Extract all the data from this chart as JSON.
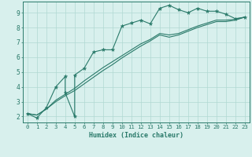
{
  "line1_x": [
    0,
    1,
    2,
    3,
    4,
    4,
    5,
    5,
    6,
    7,
    8,
    9,
    10,
    11,
    12,
    13,
    14,
    15,
    16,
    17,
    18,
    19,
    20,
    21,
    22,
    23
  ],
  "line1_y": [
    2.2,
    1.9,
    2.6,
    4.0,
    4.7,
    3.6,
    2.0,
    4.8,
    5.25,
    6.35,
    6.5,
    6.5,
    8.1,
    8.3,
    8.5,
    8.25,
    9.3,
    9.5,
    9.2,
    9.0,
    9.3,
    9.1,
    9.1,
    8.9,
    8.6,
    8.7
  ],
  "line2_x": [
    0,
    1,
    2,
    3,
    4,
    5,
    6,
    7,
    8,
    9,
    10,
    11,
    12,
    13,
    14,
    15,
    16,
    17,
    18,
    19,
    20,
    21,
    22,
    23
  ],
  "line2_y": [
    2.2,
    2.1,
    2.5,
    3.1,
    3.5,
    3.9,
    4.4,
    4.85,
    5.3,
    5.7,
    6.1,
    6.5,
    6.9,
    7.2,
    7.6,
    7.5,
    7.6,
    7.85,
    8.1,
    8.3,
    8.5,
    8.5,
    8.55,
    8.7
  ],
  "line3_x": [
    0,
    1,
    2,
    3,
    4,
    5,
    6,
    7,
    8,
    9,
    10,
    11,
    12,
    13,
    14,
    15,
    16,
    17,
    18,
    19,
    20,
    21,
    22,
    23
  ],
  "line3_y": [
    2.2,
    2.1,
    2.5,
    3.0,
    3.4,
    3.75,
    4.2,
    4.65,
    5.1,
    5.5,
    5.95,
    6.35,
    6.75,
    7.1,
    7.5,
    7.35,
    7.5,
    7.75,
    8.0,
    8.2,
    8.4,
    8.4,
    8.5,
    8.7
  ],
  "line_color": "#2a7a6a",
  "bg_color": "#d8f0ed",
  "grid_color": "#b0d8d2",
  "xlabel": "Humidex (Indice chaleur)",
  "xlim": [
    -0.5,
    23.5
  ],
  "ylim": [
    1.6,
    9.75
  ],
  "xticks": [
    0,
    1,
    2,
    3,
    4,
    5,
    6,
    7,
    8,
    9,
    10,
    11,
    12,
    13,
    14,
    15,
    16,
    17,
    18,
    19,
    20,
    21,
    22,
    23
  ],
  "yticks": [
    2,
    3,
    4,
    5,
    6,
    7,
    8,
    9
  ]
}
